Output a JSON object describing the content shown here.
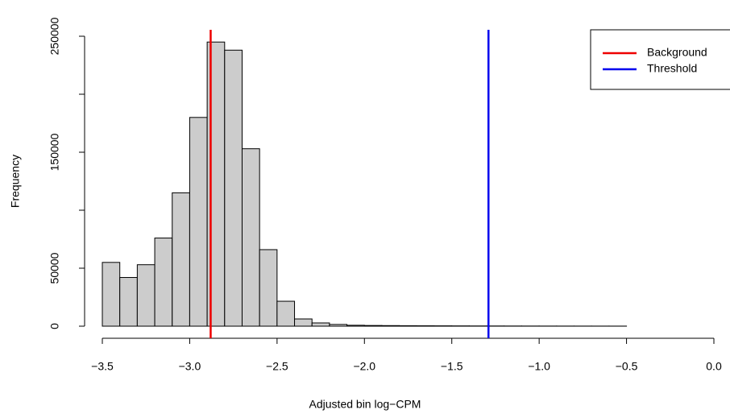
{
  "chart_data": {
    "type": "histogram",
    "x_label": "Adjusted bin log−CPM",
    "y_label": "Frequency",
    "bins": [
      -3.5,
      -3.4,
      -3.3,
      -3.2,
      -3.1,
      -3.0,
      -2.9,
      -2.8,
      -2.7,
      -2.6,
      -2.5,
      -2.4,
      -2.3,
      -2.2,
      -2.1,
      -2.0,
      -1.9,
      -1.8,
      -1.7,
      -1.6,
      -1.5,
      -1.4,
      -1.3,
      -1.2,
      -1.1,
      -1.0,
      -0.9,
      -0.8,
      -0.7,
      -0.6,
      -0.5,
      -0.4,
      -0.3,
      -0.2,
      -0.1,
      0.0
    ],
    "values": [
      55000,
      42000,
      53000,
      76000,
      115000,
      180000,
      245000,
      238000,
      153000,
      66000,
      21500,
      6250,
      2800,
      1500,
      800,
      600,
      500,
      400,
      350,
      300,
      250,
      200,
      180,
      150,
      130,
      110,
      100,
      90,
      80,
      70,
      0,
      0,
      0,
      0,
      0
    ],
    "color": "#cccccc",
    "xlim": [
      -3.5,
      0.0
    ],
    "ylim": [
      0,
      250000
    ],
    "xticks": [
      {
        "value": -3.5,
        "label": "−3.5"
      },
      {
        "value": -3.0,
        "label": "−3.0"
      },
      {
        "value": -2.5,
        "label": "−2.5"
      },
      {
        "value": -2.0,
        "label": "−2.0"
      },
      {
        "value": -1.5,
        "label": "−1.5"
      },
      {
        "value": -1.0,
        "label": "−1.0"
      },
      {
        "value": -0.5,
        "label": "−0.5"
      },
      {
        "value": 0.0,
        "label": "0.0"
      }
    ],
    "yticks": [
      0,
      50000,
      150000,
      250000
    ],
    "yminorticks": [
      100000,
      200000
    ],
    "vlines": [
      {
        "name": "Background",
        "color": "#ee0000",
        "x": -2.88
      },
      {
        "name": "Threshold",
        "color": "#0000ee",
        "x": -1.29
      }
    ],
    "legend": "top-right"
  }
}
